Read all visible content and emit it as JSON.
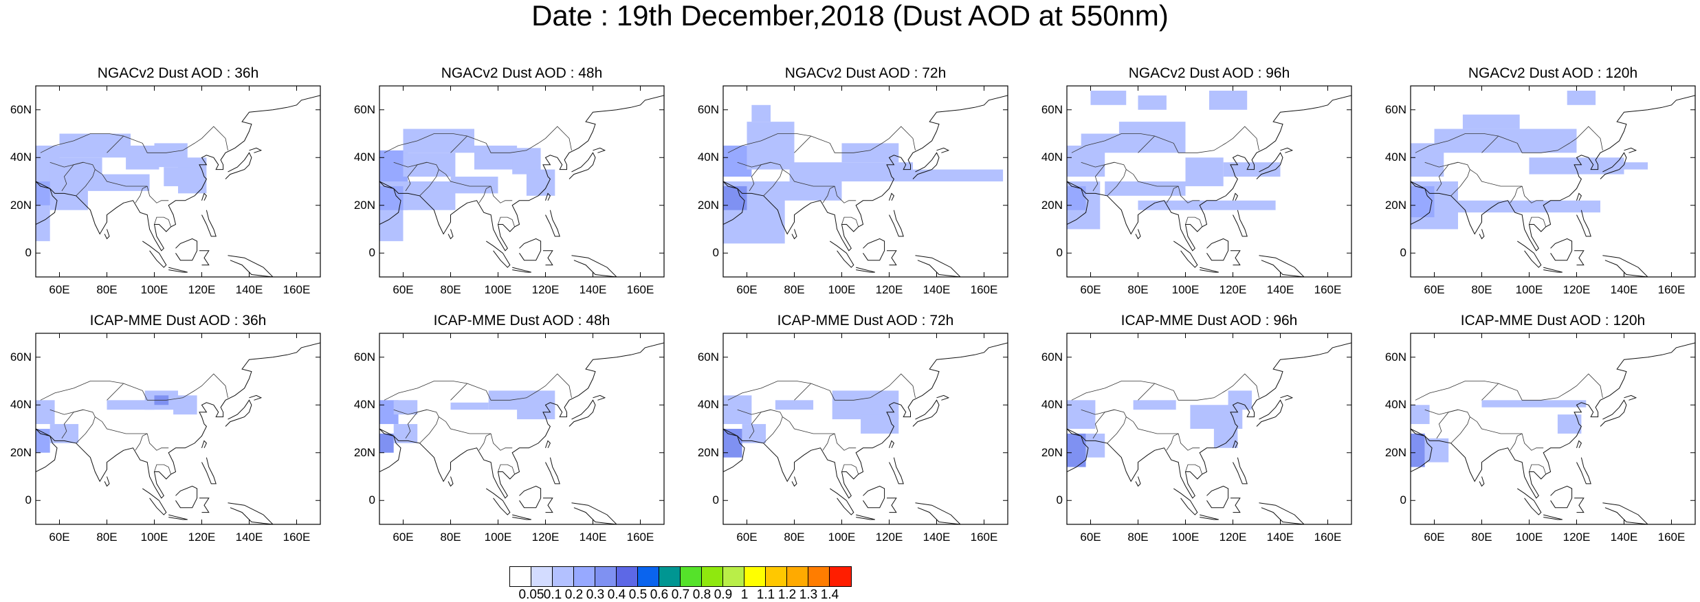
{
  "title": "Date : 19th December,2018 (Dust AOD at 550nm)",
  "map_extent": {
    "lon_range": [
      50,
      170
    ],
    "lat_range": [
      -10,
      70
    ]
  },
  "lat_ticks": [
    {
      "value": 60,
      "label": "60N"
    },
    {
      "value": 40,
      "label": "40N"
    },
    {
      "value": 20,
      "label": "20N"
    },
    {
      "value": 0,
      "label": "0"
    }
  ],
  "lon_ticks": [
    {
      "value": 60,
      "label": "60E"
    },
    {
      "value": 80,
      "label": "80E"
    },
    {
      "value": 100,
      "label": "100E"
    },
    {
      "value": 120,
      "label": "120E"
    },
    {
      "value": 140,
      "label": "140E"
    },
    {
      "value": 160,
      "label": "160E"
    }
  ],
  "panels": [
    {
      "title": "NGACv2 Dust AOD : 36h",
      "model": "NGACv2",
      "lead_time": "36h",
      "dust_regions": [
        {
          "lon": [
            50,
            56
          ],
          "lat": [
            5,
            30
          ],
          "aod": 0.15
        },
        {
          "lon": [
            50,
            62
          ],
          "lat": [
            20,
            30
          ],
          "aod": 0.25
        },
        {
          "lon": [
            50,
            60
          ],
          "lat": [
            30,
            45
          ],
          "aod": 0.15
        },
        {
          "lon": [
            56,
            78
          ],
          "lat": [
            30,
            40
          ],
          "aod": 0.12
        },
        {
          "lon": [
            60,
            90
          ],
          "lat": [
            40,
            50
          ],
          "aod": 0.1
        },
        {
          "lon": [
            56,
            72
          ],
          "lat": [
            18,
            30
          ],
          "aod": 0.12
        },
        {
          "lon": [
            72,
            98
          ],
          "lat": [
            26,
            33
          ],
          "aod": 0.1
        },
        {
          "lon": [
            88,
            102
          ],
          "lat": [
            35,
            45
          ],
          "aod": 0.1
        },
        {
          "lon": [
            100,
            114
          ],
          "lat": [
            36,
            46
          ],
          "aod": 0.12
        },
        {
          "lon": [
            110,
            122
          ],
          "lat": [
            25,
            40
          ],
          "aod": 0.1
        },
        {
          "lon": [
            104,
            116
          ],
          "lat": [
            28,
            36
          ],
          "aod": 0.1
        }
      ]
    },
    {
      "title": "NGACv2 Dust AOD : 48h",
      "model": "NGACv2",
      "lead_time": "48h",
      "dust_regions": [
        {
          "lon": [
            50,
            60
          ],
          "lat": [
            5,
            30
          ],
          "aod": 0.15
        },
        {
          "lon": [
            50,
            62
          ],
          "lat": [
            18,
            28
          ],
          "aod": 0.25
        },
        {
          "lon": [
            50,
            62
          ],
          "lat": [
            30,
            43
          ],
          "aod": 0.2
        },
        {
          "lon": [
            60,
            82
          ],
          "lat": [
            32,
            42
          ],
          "aod": 0.12
        },
        {
          "lon": [
            60,
            90
          ],
          "lat": [
            42,
            52
          ],
          "aod": 0.1
        },
        {
          "lon": [
            60,
            82
          ],
          "lat": [
            18,
            30
          ],
          "aod": 0.12
        },
        {
          "lon": [
            80,
            100
          ],
          "lat": [
            25,
            32
          ],
          "aod": 0.1
        },
        {
          "lon": [
            90,
            108
          ],
          "lat": [
            35,
            45
          ],
          "aod": 0.1
        },
        {
          "lon": [
            106,
            118
          ],
          "lat": [
            33,
            44
          ],
          "aod": 0.12
        },
        {
          "lon": [
            112,
            124
          ],
          "lat": [
            24,
            35
          ],
          "aod": 0.1
        }
      ]
    },
    {
      "title": "NGACv2 Dust AOD : 72h",
      "model": "NGACv2",
      "lead_time": "72h",
      "dust_regions": [
        {
          "lon": [
            50,
            76
          ],
          "lat": [
            4,
            30
          ],
          "aod": 0.15
        },
        {
          "lon": [
            50,
            60
          ],
          "lat": [
            18,
            28
          ],
          "aod": 0.3
        },
        {
          "lon": [
            50,
            62
          ],
          "lat": [
            32,
            45
          ],
          "aod": 0.2
        },
        {
          "lon": [
            60,
            80
          ],
          "lat": [
            35,
            55
          ],
          "aod": 0.12
        },
        {
          "lon": [
            62,
            70
          ],
          "lat": [
            55,
            62
          ],
          "aod": 0.1
        },
        {
          "lon": [
            78,
            130
          ],
          "lat": [
            30,
            38
          ],
          "aod": 0.12
        },
        {
          "lon": [
            100,
            124
          ],
          "lat": [
            38,
            46
          ],
          "aod": 0.12
        },
        {
          "lon": [
            130,
            168
          ],
          "lat": [
            30,
            35
          ],
          "aod": 0.1
        },
        {
          "lon": [
            72,
            100
          ],
          "lat": [
            22,
            30
          ],
          "aod": 0.1
        }
      ]
    },
    {
      "title": "NGACv2 Dust AOD : 96h",
      "model": "NGACv2",
      "lead_time": "96h",
      "dust_regions": [
        {
          "lon": [
            50,
            64
          ],
          "lat": [
            10,
            30
          ],
          "aod": 0.15
        },
        {
          "lon": [
            50,
            58
          ],
          "lat": [
            18,
            28
          ],
          "aod": 0.25
        },
        {
          "lon": [
            50,
            66
          ],
          "lat": [
            32,
            45
          ],
          "aod": 0.12
        },
        {
          "lon": [
            56,
            100
          ],
          "lat": [
            42,
            50
          ],
          "aod": 0.1
        },
        {
          "lon": [
            72,
            100
          ],
          "lat": [
            50,
            55
          ],
          "aod": 0.1
        },
        {
          "lon": [
            60,
            75
          ],
          "lat": [
            62,
            68
          ],
          "aod": 0.1
        },
        {
          "lon": [
            80,
            92
          ],
          "lat": [
            60,
            66
          ],
          "aod": 0.1
        },
        {
          "lon": [
            110,
            126
          ],
          "lat": [
            60,
            68
          ],
          "aod": 0.1
        },
        {
          "lon": [
            100,
            116
          ],
          "lat": [
            28,
            40
          ],
          "aod": 0.12
        },
        {
          "lon": [
            116,
            140
          ],
          "lat": [
            32,
            38
          ],
          "aod": 0.1
        },
        {
          "lon": [
            66,
            100
          ],
          "lat": [
            24,
            30
          ],
          "aod": 0.1
        },
        {
          "lon": [
            80,
            138
          ],
          "lat": [
            18,
            22
          ],
          "aod": 0.1
        }
      ]
    },
    {
      "title": "NGACv2 Dust AOD : 120h",
      "model": "NGACv2",
      "lead_time": "120h",
      "dust_regions": [
        {
          "lon": [
            50,
            70
          ],
          "lat": [
            10,
            30
          ],
          "aod": 0.15
        },
        {
          "lon": [
            50,
            60
          ],
          "lat": [
            15,
            28
          ],
          "aod": 0.25
        },
        {
          "lon": [
            50,
            64
          ],
          "lat": [
            32,
            46
          ],
          "aod": 0.15
        },
        {
          "lon": [
            60,
            120
          ],
          "lat": [
            42,
            52
          ],
          "aod": 0.1
        },
        {
          "lon": [
            72,
            96
          ],
          "lat": [
            52,
            58
          ],
          "aod": 0.1
        },
        {
          "lon": [
            116,
            128
          ],
          "lat": [
            62,
            68
          ],
          "aod": 0.1
        },
        {
          "lon": [
            100,
            140
          ],
          "lat": [
            33,
            40
          ],
          "aod": 0.12
        },
        {
          "lon": [
            70,
            130
          ],
          "lat": [
            17,
            22
          ],
          "aod": 0.1
        },
        {
          "lon": [
            130,
            150
          ],
          "lat": [
            35,
            38
          ],
          "aod": 0.1
        }
      ]
    },
    {
      "title": "ICAP-MME Dust AOD : 36h",
      "model": "ICAP-MME",
      "lead_time": "36h",
      "dust_regions": [
        {
          "lon": [
            50,
            56
          ],
          "lat": [
            20,
            30
          ],
          "aod": 0.25
        },
        {
          "lon": [
            50,
            58
          ],
          "lat": [
            32,
            42
          ],
          "aod": 0.15
        },
        {
          "lon": [
            56,
            68
          ],
          "lat": [
            24,
            32
          ],
          "aod": 0.1
        },
        {
          "lon": [
            80,
            100
          ],
          "lat": [
            38,
            42
          ],
          "aod": 0.1
        },
        {
          "lon": [
            96,
            110
          ],
          "lat": [
            38,
            46
          ],
          "aod": 0.15
        },
        {
          "lon": [
            100,
            106
          ],
          "lat": [
            40,
            44
          ],
          "aod": 0.3
        },
        {
          "lon": [
            108,
            118
          ],
          "lat": [
            36,
            44
          ],
          "aod": 0.1
        }
      ]
    },
    {
      "title": "ICAP-MME Dust AOD : 48h",
      "model": "ICAP-MME",
      "lead_time": "48h",
      "dust_regions": [
        {
          "lon": [
            50,
            56
          ],
          "lat": [
            20,
            28
          ],
          "aod": 0.3
        },
        {
          "lon": [
            50,
            58
          ],
          "lat": [
            32,
            42
          ],
          "aod": 0.2
        },
        {
          "lon": [
            56,
            66
          ],
          "lat": [
            24,
            32
          ],
          "aod": 0.1
        },
        {
          "lon": [
            56,
            66
          ],
          "lat": [
            36,
            42
          ],
          "aod": 0.12
        },
        {
          "lon": [
            80,
            96
          ],
          "lat": [
            38,
            41
          ],
          "aod": 0.1
        },
        {
          "lon": [
            96,
            124
          ],
          "lat": [
            38,
            46
          ],
          "aod": 0.12
        },
        {
          "lon": [
            108,
            124
          ],
          "lat": [
            34,
            40
          ],
          "aod": 0.1
        }
      ]
    },
    {
      "title": "ICAP-MME Dust AOD : 72h",
      "model": "ICAP-MME",
      "lead_time": "72h",
      "dust_regions": [
        {
          "lon": [
            50,
            58
          ],
          "lat": [
            18,
            30
          ],
          "aod": 0.3
        },
        {
          "lon": [
            50,
            62
          ],
          "lat": [
            32,
            44
          ],
          "aod": 0.15
        },
        {
          "lon": [
            58,
            68
          ],
          "lat": [
            24,
            32
          ],
          "aod": 0.1
        },
        {
          "lon": [
            72,
            88
          ],
          "lat": [
            38,
            42
          ],
          "aod": 0.1
        },
        {
          "lon": [
            96,
            124
          ],
          "lat": [
            34,
            46
          ],
          "aod": 0.12
        },
        {
          "lon": [
            108,
            124
          ],
          "lat": [
            28,
            36
          ],
          "aod": 0.1
        }
      ]
    },
    {
      "title": "ICAP-MME Dust AOD : 96h",
      "model": "ICAP-MME",
      "lead_time": "96h",
      "dust_regions": [
        {
          "lon": [
            50,
            58
          ],
          "lat": [
            14,
            28
          ],
          "aod": 0.3
        },
        {
          "lon": [
            50,
            62
          ],
          "lat": [
            30,
            42
          ],
          "aod": 0.12
        },
        {
          "lon": [
            58,
            66
          ],
          "lat": [
            18,
            28
          ],
          "aod": 0.15
        },
        {
          "lon": [
            78,
            96
          ],
          "lat": [
            38,
            42
          ],
          "aod": 0.1
        },
        {
          "lon": [
            102,
            124
          ],
          "lat": [
            30,
            40
          ],
          "aod": 0.12
        },
        {
          "lon": [
            112,
            122
          ],
          "lat": [
            22,
            32
          ],
          "aod": 0.1
        },
        {
          "lon": [
            118,
            128
          ],
          "lat": [
            38,
            46
          ],
          "aod": 0.1
        }
      ]
    },
    {
      "title": "ICAP-MME Dust AOD : 120h",
      "model": "ICAP-MME",
      "lead_time": "120h",
      "dust_regions": [
        {
          "lon": [
            50,
            56
          ],
          "lat": [
            14,
            28
          ],
          "aod": 0.3
        },
        {
          "lon": [
            56,
            66
          ],
          "lat": [
            16,
            26
          ],
          "aod": 0.15
        },
        {
          "lon": [
            50,
            58
          ],
          "lat": [
            32,
            40
          ],
          "aod": 0.1
        },
        {
          "lon": [
            80,
            124
          ],
          "lat": [
            39,
            42
          ],
          "aod": 0.1
        },
        {
          "lon": [
            112,
            122
          ],
          "lat": [
            28,
            36
          ],
          "aod": 0.1
        }
      ]
    }
  ],
  "colorbar": {
    "colors": [
      "#ffffff",
      "#d3dcff",
      "#b3c1ff",
      "#97a9ff",
      "#7f91f2",
      "#5d68e6",
      "#0a64ee",
      "#009692",
      "#55e22a",
      "#8fe80e",
      "#b9ee48",
      "#ffff00",
      "#ffc800",
      "#ffaa00",
      "#ff7d00",
      "#ff1e00"
    ],
    "boundaries": [
      0.05,
      0.1,
      0.2,
      0.3,
      0.4,
      0.5,
      0.6,
      0.7,
      0.8,
      0.9,
      1,
      1.1,
      1.2,
      1.3,
      1.4
    ],
    "labels": [
      "0.05",
      "0.1",
      "0.2",
      "0.3",
      "0.4",
      "0.5",
      "0.6",
      "0.7",
      "0.8",
      "0.9",
      "1",
      "1.1",
      "1.2",
      "1.3",
      "1.4"
    ]
  }
}
